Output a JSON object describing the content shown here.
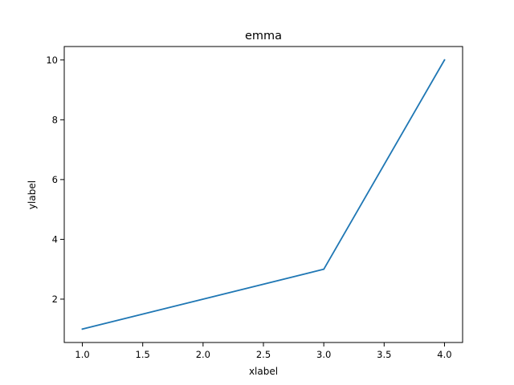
{
  "chart_data": {
    "type": "line",
    "title": "emma",
    "xlabel": "xlabel",
    "ylabel": "ylabel",
    "x": [
      1,
      3,
      4
    ],
    "series": [
      {
        "values": [
          1,
          3,
          10
        ],
        "color": "#1f77b4"
      }
    ],
    "xlim": [
      0.85,
      4.15
    ],
    "ylim": [
      0.55,
      10.45
    ],
    "xticks": [
      1.0,
      1.5,
      2.0,
      2.5,
      3.0,
      3.5,
      4.0
    ],
    "xtick_labels": [
      "1.0",
      "1.5",
      "2.0",
      "2.5",
      "3.0",
      "3.5",
      "4.0"
    ],
    "yticks": [
      2,
      4,
      6,
      8,
      10
    ],
    "ytick_labels": [
      "2",
      "4",
      "6",
      "8",
      "10"
    ],
    "grid": false,
    "legend": "none"
  }
}
